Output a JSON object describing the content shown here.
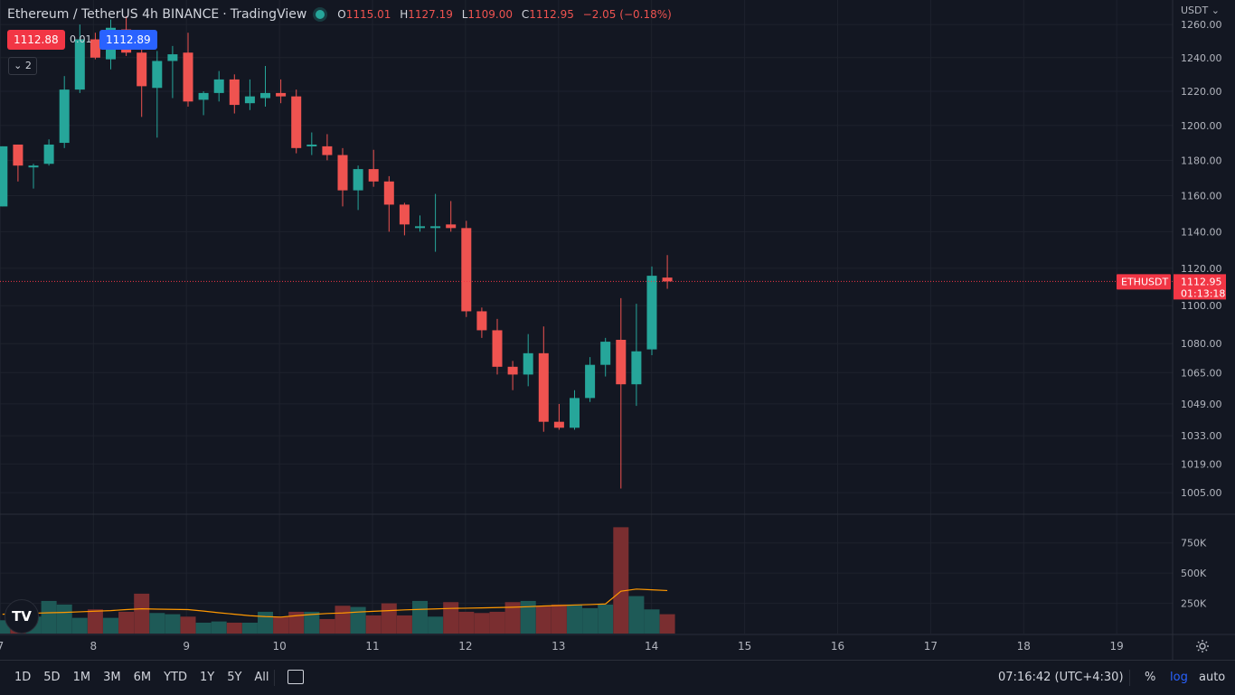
{
  "header": {
    "symbol": "Ethereum / TetherUS",
    "interval": "4h",
    "exchange": "BINANCE",
    "source": "TradingView",
    "sep": "·",
    "ohlc": {
      "o_label": "O",
      "o": "1115.01",
      "h_label": "H",
      "h": "1127.19",
      "l_label": "L",
      "l": "1109.00",
      "c_label": "C",
      "c": "1112.95",
      "change": "−2.05 (−0.18%)"
    }
  },
  "trade": {
    "sell": "1112.88",
    "spread": "0.01",
    "buy": "1112.89"
  },
  "indicators_collapse": "2",
  "currency": "USDT",
  "logo": "TV",
  "colors": {
    "up": "#26a69a",
    "down": "#ef5350",
    "bg": "#131722",
    "grid": "#1e222d",
    "vol_up": "#1e5a57",
    "vol_down": "#7a2e30",
    "ma": "#ff9800",
    "price_line": "#f23645"
  },
  "chart_data": {
    "type": "candlestick",
    "scale": "log",
    "ylim": [
      995,
      1275
    ],
    "yticks": [
      1260,
      1240,
      1220,
      1200,
      1180,
      1160,
      1140,
      1120,
      1100,
      1080,
      1065,
      1049,
      1033,
      1019,
      1005
    ],
    "ytick_labels": [
      "1260.00",
      "1240.00",
      "1220.00",
      "1200.00",
      "1180.00",
      "1160.00",
      "1140.00",
      "1120.00",
      "1100.00",
      "1080.00",
      "1065.00",
      "1049.00",
      "1033.00",
      "1019.00",
      "1005.00"
    ],
    "x_labels": [
      "7",
      "8",
      "9",
      "10",
      "11",
      "12",
      "13",
      "14",
      "15",
      "16",
      "17",
      "18",
      "19"
    ],
    "x_label_dates": [
      7,
      8,
      9,
      10,
      11,
      12,
      13,
      14,
      15,
      16,
      17,
      18,
      19
    ],
    "candles": [
      {
        "o": 1154,
        "h": 1188,
        "l": 1154,
        "c": 1188
      },
      {
        "o": 1189,
        "h": 1189,
        "l": 1168,
        "c": 1177
      },
      {
        "o": 1177,
        "h": 1178,
        "l": 1164,
        "c": 1177
      },
      {
        "o": 1178,
        "h": 1192,
        "l": 1177,
        "c": 1189
      },
      {
        "o": 1190,
        "h": 1229,
        "l": 1187,
        "c": 1221
      },
      {
        "o": 1221,
        "h": 1260,
        "l": 1219,
        "c": 1251
      },
      {
        "o": 1251,
        "h": 1255,
        "l": 1239,
        "c": 1240
      },
      {
        "o": 1239,
        "h": 1263,
        "l": 1233,
        "c": 1258
      },
      {
        "o": 1257,
        "h": 1265,
        "l": 1241,
        "c": 1243
      },
      {
        "o": 1243,
        "h": 1248,
        "l": 1205,
        "c": 1223
      },
      {
        "o": 1222,
        "h": 1244,
        "l": 1193,
        "c": 1238
      },
      {
        "o": 1238,
        "h": 1247,
        "l": 1216,
        "c": 1242
      },
      {
        "o": 1243,
        "h": 1255,
        "l": 1211,
        "c": 1214
      },
      {
        "o": 1215,
        "h": 1220,
        "l": 1206,
        "c": 1219
      },
      {
        "o": 1219,
        "h": 1232,
        "l": 1214,
        "c": 1227
      },
      {
        "o": 1227,
        "h": 1230,
        "l": 1207,
        "c": 1212
      },
      {
        "o": 1213,
        "h": 1227,
        "l": 1209,
        "c": 1217
      },
      {
        "o": 1216,
        "h": 1235,
        "l": 1211,
        "c": 1219
      },
      {
        "o": 1219,
        "h": 1227,
        "l": 1213,
        "c": 1217
      },
      {
        "o": 1217,
        "h": 1221,
        "l": 1184,
        "c": 1187
      },
      {
        "o": 1188,
        "h": 1196,
        "l": 1183,
        "c": 1189
      },
      {
        "o": 1188,
        "h": 1195,
        "l": 1180,
        "c": 1183
      },
      {
        "o": 1183,
        "h": 1187,
        "l": 1154,
        "c": 1163
      },
      {
        "o": 1163,
        "h": 1177,
        "l": 1152,
        "c": 1175
      },
      {
        "o": 1175,
        "h": 1186,
        "l": 1165,
        "c": 1168
      },
      {
        "o": 1168,
        "h": 1171,
        "l": 1140,
        "c": 1155
      },
      {
        "o": 1155,
        "h": 1156,
        "l": 1138,
        "c": 1144
      },
      {
        "o": 1143,
        "h": 1149,
        "l": 1140,
        "c": 1143
      },
      {
        "o": 1143,
        "h": 1161,
        "l": 1129,
        "c": 1143
      },
      {
        "o": 1144,
        "h": 1157,
        "l": 1140,
        "c": 1142
      },
      {
        "o": 1142,
        "h": 1146,
        "l": 1094,
        "c": 1097
      },
      {
        "o": 1097,
        "h": 1099,
        "l": 1083,
        "c": 1087
      },
      {
        "o": 1087,
        "h": 1093,
        "l": 1064,
        "c": 1068
      },
      {
        "o": 1068,
        "h": 1071,
        "l": 1056,
        "c": 1064
      },
      {
        "o": 1064,
        "h": 1085,
        "l": 1058,
        "c": 1075
      },
      {
        "o": 1075,
        "h": 1089,
        "l": 1035,
        "c": 1040
      },
      {
        "o": 1040,
        "h": 1049,
        "l": 1036,
        "c": 1037
      },
      {
        "o": 1037,
        "h": 1056,
        "l": 1036,
        "c": 1052
      },
      {
        "o": 1052,
        "h": 1073,
        "l": 1050,
        "c": 1069
      },
      {
        "o": 1069,
        "h": 1083,
        "l": 1063,
        "c": 1081
      },
      {
        "o": 1082,
        "h": 1104,
        "l": 1007,
        "c": 1059
      },
      {
        "o": 1059,
        "h": 1101,
        "l": 1048,
        "c": 1076
      },
      {
        "o": 1077,
        "h": 1121,
        "l": 1074,
        "c": 1116
      },
      {
        "o": 1115.01,
        "h": 1127.19,
        "l": 1109,
        "c": 1112.95
      }
    ],
    "volume_ticks": [
      750000,
      500000,
      250000
    ],
    "volume_tick_labels": [
      "750K",
      "500K",
      "250K"
    ],
    "volumes": [
      110000,
      130000,
      140000,
      270000,
      240000,
      130000,
      200000,
      130000,
      180000,
      330000,
      170000,
      160000,
      140000,
      90000,
      100000,
      90000,
      90000,
      180000,
      140000,
      180000,
      180000,
      120000,
      230000,
      220000,
      150000,
      250000,
      150000,
      270000,
      140000,
      260000,
      180000,
      170000,
      180000,
      260000,
      270000,
      230000,
      240000,
      240000,
      210000,
      240000,
      880000,
      310000,
      200000,
      160000
    ],
    "ma": [
      160000,
      165000,
      168000,
      172000,
      175000,
      180000,
      185000,
      190000,
      198000,
      205000,
      202000,
      200000,
      198000,
      186000,
      172000,
      160000,
      148000,
      140000,
      136000,
      148000,
      158000,
      166000,
      170000,
      178000,
      184000,
      190000,
      196000,
      200000,
      204000,
      208000,
      210000,
      212000,
      215000,
      218000,
      222000,
      228000,
      232000,
      236000,
      240000,
      245000,
      350000,
      368000,
      362000,
      356000
    ],
    "last_price": "1112.95",
    "last_price_label": "ETHUSDT",
    "countdown": "01:13:18"
  },
  "bottom_bar": {
    "ranges": [
      "1D",
      "5D",
      "1M",
      "3M",
      "6M",
      "YTD",
      "1Y",
      "5Y",
      "All"
    ],
    "clock": "07:16:42 (UTC+4:30)",
    "percent": "%",
    "log": "log",
    "auto": "auto"
  }
}
